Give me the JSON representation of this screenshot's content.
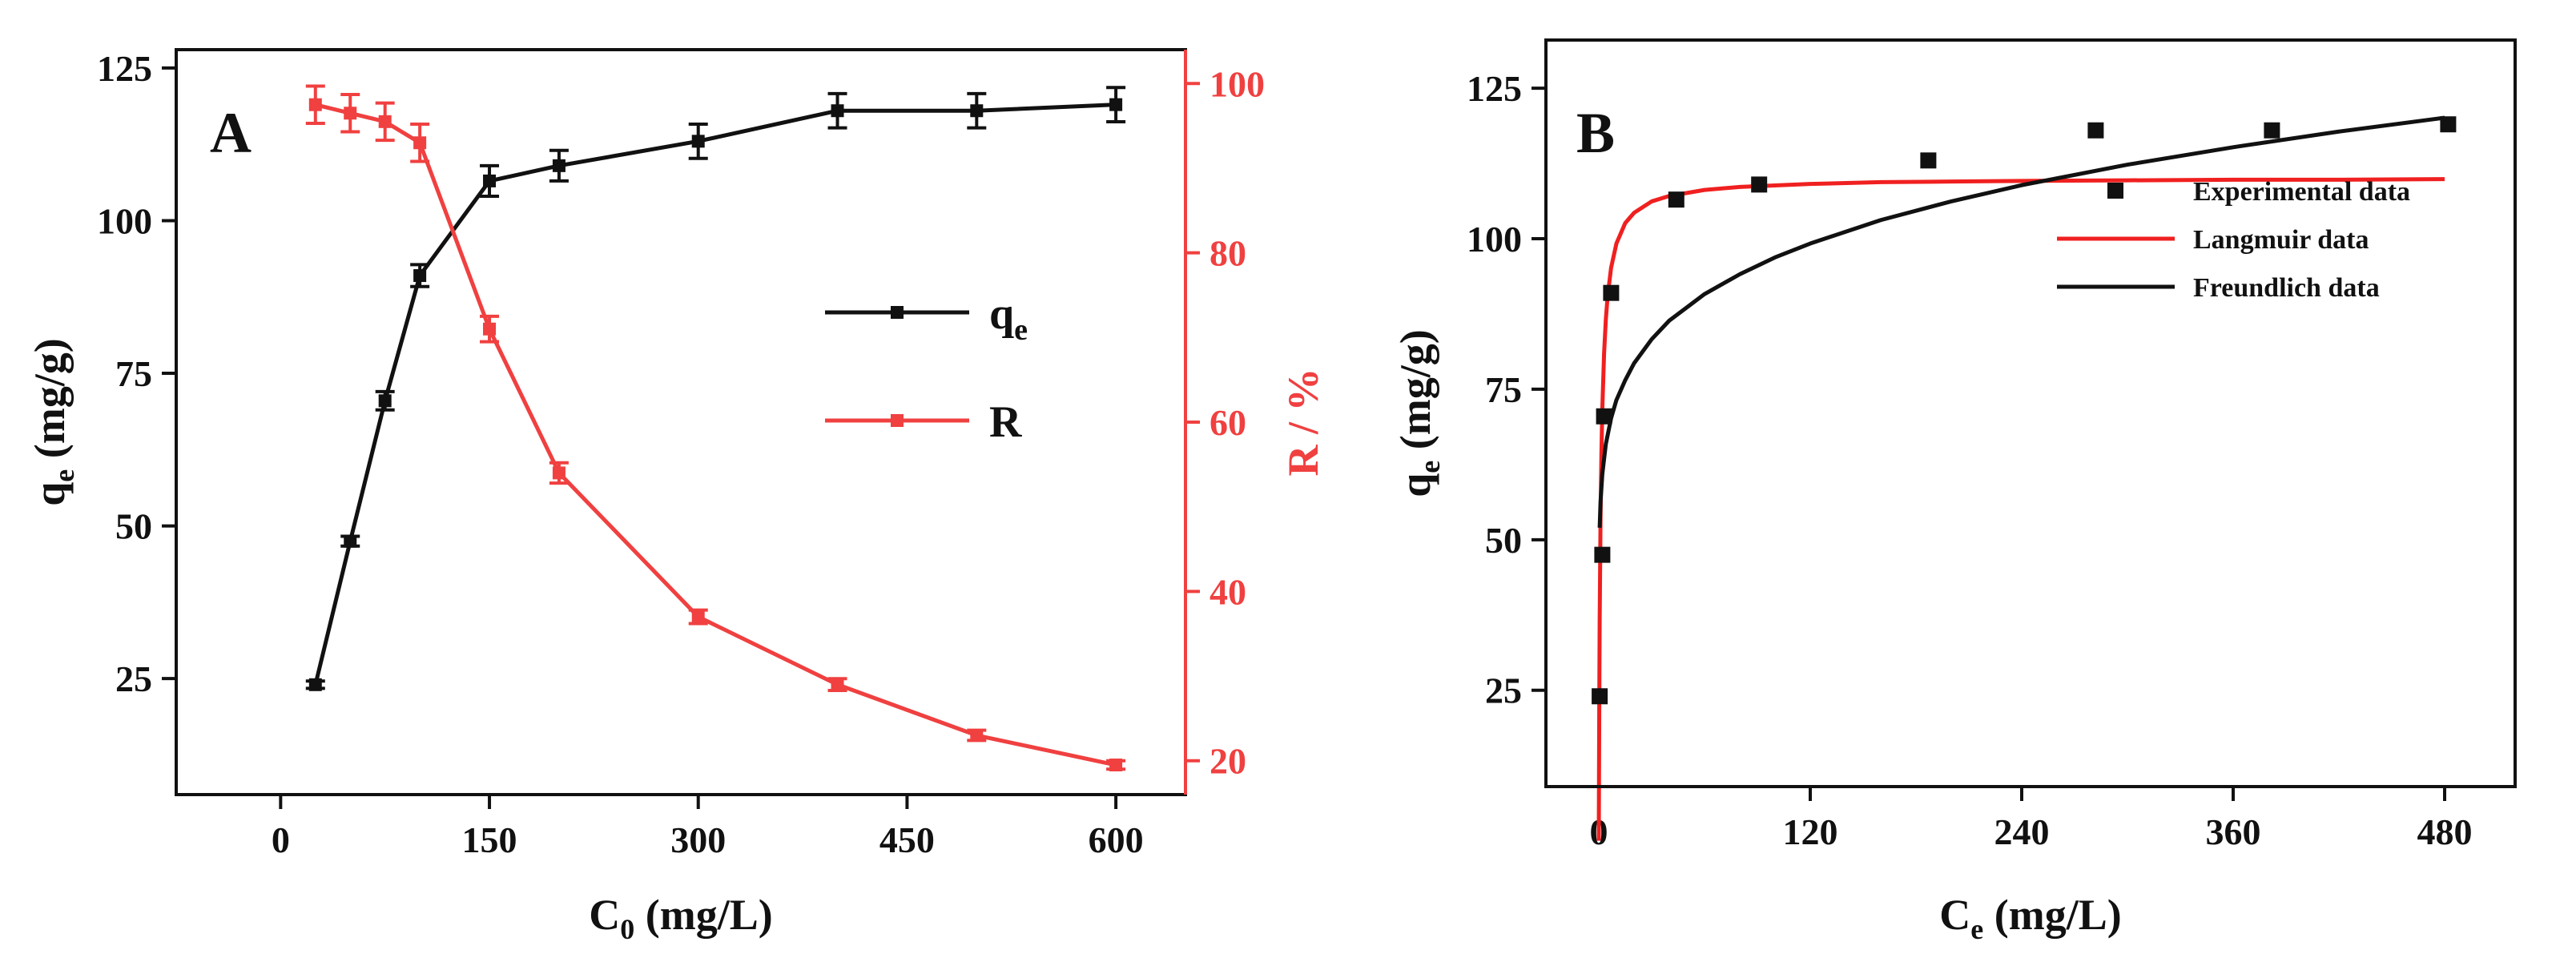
{
  "chart_data": [
    {
      "panel": "A",
      "type": "line",
      "xlabel": "C0 (mg/L)",
      "ylabel": "qe (mg/g)",
      "y2label": "R / %",
      "xlim": [
        -75,
        650
      ],
      "ylim": [
        6,
        128
      ],
      "y2lim": [
        16,
        104
      ],
      "xticks": [
        0,
        150,
        300,
        450,
        600
      ],
      "yticks": [
        25,
        50,
        75,
        100,
        125
      ],
      "y2ticks": [
        20,
        40,
        60,
        80,
        100
      ],
      "legend_position": "center-right",
      "series": [
        {
          "name": "qe",
          "legend_main": "q",
          "legend_sub": "e",
          "axis": "left",
          "color": "#111111",
          "x": [
            25,
            50,
            75,
            100,
            150,
            200,
            300,
            400,
            500,
            600
          ],
          "values": [
            24,
            47.5,
            70.5,
            91,
            106.5,
            109,
            113,
            118,
            118,
            119
          ],
          "errors": [
            0.6,
            0.8,
            1.5,
            1.8,
            2.5,
            2.5,
            2.8,
            2.8,
            2.8,
            2.8
          ]
        },
        {
          "name": "R",
          "legend_main": "R",
          "legend_sub": "",
          "axis": "right",
          "color": "#f04040",
          "x": [
            25,
            50,
            75,
            100,
            150,
            200,
            300,
            400,
            500,
            600
          ],
          "values": [
            97.5,
            96.5,
            95.5,
            93,
            71,
            54,
            37,
            29,
            23,
            19.5
          ],
          "errors": [
            2.2,
            2.2,
            2.2,
            2.2,
            1.5,
            1.2,
            0.8,
            0.7,
            0.6,
            0.5
          ]
        }
      ]
    },
    {
      "panel": "B",
      "type": "scatter",
      "xlabel": "Ce (mg/L)",
      "ylabel": "qe (mg/g)",
      "xlim": [
        -30,
        520
      ],
      "ylim": [
        9,
        133
      ],
      "xticks": [
        0,
        120,
        240,
        360,
        480
      ],
      "yticks": [
        25,
        50,
        75,
        100,
        125
      ],
      "legend_position": "top-right",
      "series": [
        {
          "name": "Experimental data",
          "kind": "points",
          "color": "#111111",
          "x": [
            0.5,
            2,
            3,
            7,
            44,
            91,
            187,
            282,
            382,
            482
          ],
          "values": [
            24,
            47.5,
            70.5,
            91,
            106.5,
            109,
            113,
            118,
            118,
            119
          ]
        },
        {
          "name": "Langmuir data",
          "kind": "line",
          "color": "#f02020",
          "x": [
            0,
            0.25,
            0.5,
            1,
            1.5,
            2,
            3,
            4,
            5,
            7,
            10,
            15,
            20,
            30,
            40,
            60,
            80,
            120,
            160,
            200,
            240,
            300,
            360,
            420,
            480
          ],
          "values": [
            0,
            20.5,
            36.3,
            53.8,
            64.4,
            71.7,
            80.9,
            86.6,
            90.4,
            95.2,
            99.2,
            102.6,
            104.3,
            106.2,
            107.1,
            108.1,
            108.6,
            109.1,
            109.4,
            109.5,
            109.6,
            109.7,
            109.8,
            109.8,
            109.9
          ]
        },
        {
          "name": "Freundlich data",
          "kind": "line",
          "color": "#111111",
          "x": [
            0.5,
            1,
            2,
            4,
            7,
            10,
            15,
            20,
            30,
            40,
            60,
            80,
            100,
            120,
            160,
            200,
            240,
            300,
            360,
            420,
            480
          ],
          "values": [
            52,
            56.3,
            60.9,
            65.9,
            70.2,
            73.2,
            76.5,
            79.3,
            83.3,
            86.4,
            90.8,
            94.1,
            96.9,
            99.2,
            103.1,
            106.2,
            108.9,
            112.3,
            115.2,
            117.8,
            120.1
          ]
        }
      ]
    }
  ]
}
